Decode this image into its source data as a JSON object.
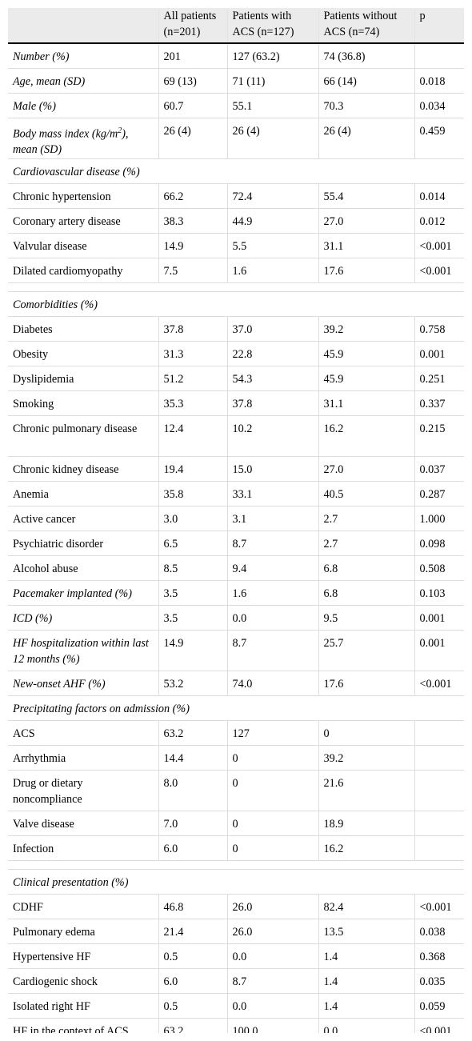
{
  "columns": [
    "",
    "All patients (n=201)",
    "Patients with ACS (n=127)",
    "Patients without ACS (n=74)",
    "p"
  ],
  "rows": [
    {
      "type": "data",
      "italic": true,
      "label": "Number (%)",
      "cells": [
        "201",
        "127 (63.2)",
        "74 (36.8)",
        ""
      ]
    },
    {
      "type": "data",
      "italic": true,
      "label": "Age, mean (SD)",
      "cells": [
        "69 (13)",
        "71 (11)",
        "66 (14)",
        "0.018"
      ]
    },
    {
      "type": "data",
      "italic": true,
      "label": "Male (%)",
      "cells": [
        "60.7",
        "55.1",
        "70.3",
        "0.034"
      ]
    },
    {
      "type": "data",
      "italic": true,
      "tall": true,
      "label": "Body mass index (kg/m",
      "sup": "2",
      "label_after": "), mean (SD)",
      "cells": [
        "26 (4)",
        "26 (4)",
        "26 (4)",
        "0.459"
      ]
    },
    {
      "type": "section",
      "label": "Cardiovascular disease (%)"
    },
    {
      "type": "data",
      "label": "Chronic hypertension",
      "cells": [
        "66.2",
        "72.4",
        "55.4",
        "0.014"
      ]
    },
    {
      "type": "data",
      "label": "Coronary artery disease",
      "cells": [
        "38.3",
        "44.9",
        "27.0",
        "0.012"
      ]
    },
    {
      "type": "data",
      "label": "Valvular disease",
      "cells": [
        "14.9",
        "5.5",
        "31.1",
        "<0.001"
      ]
    },
    {
      "type": "data",
      "label": "Dilated cardiomyopathy",
      "cells": [
        "7.5",
        "1.6",
        "17.6",
        "<0.001"
      ]
    },
    {
      "type": "spacer"
    },
    {
      "type": "section",
      "label": "Comorbidities (%)"
    },
    {
      "type": "data",
      "label": "Diabetes",
      "cells": [
        "37.8",
        "37.0",
        "39.2",
        "0.758"
      ]
    },
    {
      "type": "data",
      "label": "Obesity",
      "cells": [
        "31.3",
        "22.8",
        "45.9",
        "0.001"
      ]
    },
    {
      "type": "data",
      "label": "Dyslipidemia",
      "cells": [
        "51.2",
        "54.3",
        "45.9",
        "0.251"
      ]
    },
    {
      "type": "data",
      "label": "Smoking",
      "cells": [
        "35.3",
        "37.8",
        "31.1",
        "0.337"
      ]
    },
    {
      "type": "data",
      "tall": true,
      "label": "Chronic pulmonary disease",
      "cells": [
        "12.4",
        "10.2",
        "16.2",
        "0.215"
      ]
    },
    {
      "type": "data",
      "label": "Chronic kidney disease",
      "cells": [
        "19.4",
        "15.0",
        "27.0",
        "0.037"
      ]
    },
    {
      "type": "data",
      "label": "Anemia",
      "cells": [
        "35.8",
        "33.1",
        "40.5",
        "0.287"
      ]
    },
    {
      "type": "data",
      "label": "Active cancer",
      "cells": [
        "3.0",
        "3.1",
        "2.7",
        "1.000"
      ]
    },
    {
      "type": "data",
      "label": "Psychiatric disorder",
      "cells": [
        "6.5",
        "8.7",
        "2.7",
        "0.098"
      ]
    },
    {
      "type": "data",
      "label": "Alcohol abuse",
      "cells": [
        "8.5",
        "9.4",
        "6.8",
        "0.508"
      ]
    },
    {
      "type": "data",
      "italic": true,
      "label": "Pacemaker implanted (%)",
      "cells": [
        "3.5",
        "1.6",
        "6.8",
        "0.103"
      ]
    },
    {
      "type": "data",
      "italic": true,
      "label": "ICD (%)",
      "cells": [
        "3.5",
        "0.0",
        "9.5",
        "0.001"
      ]
    },
    {
      "type": "data",
      "italic": true,
      "tall": true,
      "label": "HF hospitalization within last 12 months (%)",
      "cells": [
        "14.9",
        "8.7",
        "25.7",
        "0.001"
      ]
    },
    {
      "type": "data",
      "italic": true,
      "label": "New-onset AHF (%)",
      "cells": [
        "53.2",
        "74.0",
        "17.6",
        "<0.001"
      ]
    },
    {
      "type": "section",
      "label": "Precipitating factors on admission (%)"
    },
    {
      "type": "data",
      "label": "ACS",
      "cells": [
        "63.2",
        "127",
        "0",
        ""
      ]
    },
    {
      "type": "data",
      "label": "Arrhythmia",
      "cells": [
        "14.4",
        "0",
        "39.2",
        ""
      ]
    },
    {
      "type": "data",
      "tall": true,
      "label": "Drug or dietary noncompliance",
      "cells": [
        "8.0",
        "0",
        "21.6",
        ""
      ]
    },
    {
      "type": "data",
      "label": "Valve disease",
      "cells": [
        "7.0",
        "0",
        "18.9",
        ""
      ]
    },
    {
      "type": "data",
      "label": "Infection",
      "cells": [
        "6.0",
        "0",
        "16.2",
        ""
      ]
    },
    {
      "type": "spacer"
    },
    {
      "type": "section",
      "label": "Clinical presentation (%)"
    },
    {
      "type": "data",
      "label": "CDHF",
      "cells": [
        "46.8",
        "26.0",
        "82.4",
        "<0.001"
      ]
    },
    {
      "type": "data",
      "label": "Pulmonary edema",
      "cells": [
        "21.4",
        "26.0",
        "13.5",
        "0.038"
      ]
    },
    {
      "type": "data",
      "label": "Hypertensive HF",
      "cells": [
        "0.5",
        "0.0",
        "1.4",
        "0.368"
      ]
    },
    {
      "type": "data",
      "label": "Cardiogenic shock",
      "cells": [
        "6.0",
        "8.7",
        "1.4",
        "0.035"
      ]
    },
    {
      "type": "data",
      "label": "Isolated right HF",
      "cells": [
        "0.5",
        "0.0",
        "1.4",
        "0.059"
      ]
    },
    {
      "type": "data",
      "label": "HF in the context of ACS",
      "cells": [
        "63.2",
        "100.0",
        "0.0",
        "<0.001"
      ]
    }
  ]
}
